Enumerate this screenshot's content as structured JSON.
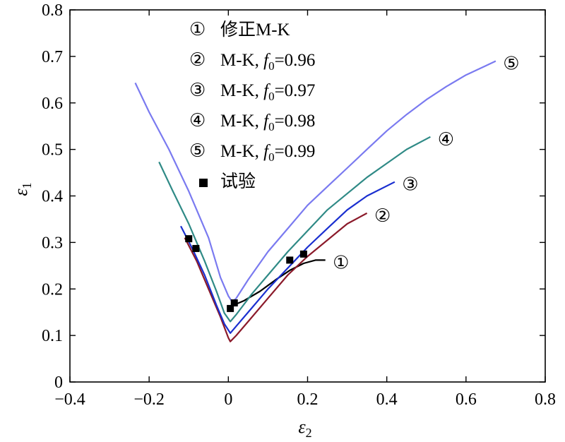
{
  "chart_data": {
    "type": "line",
    "xlabel": "ε₂",
    "ylabel": "ε₁",
    "xlim": [
      -0.4,
      0.8
    ],
    "ylim": [
      0,
      0.8
    ],
    "xticks": [
      -0.4,
      -0.2,
      0,
      0.2,
      0.4,
      0.6,
      0.8
    ],
    "yticks": [
      0,
      0.1,
      0.2,
      0.3,
      0.4,
      0.5,
      0.6,
      0.7,
      0.8
    ],
    "xtick_labels": [
      "−0.4",
      "−0.2",
      "0",
      "0.2",
      "0.4",
      "0.6",
      "0.8"
    ],
    "ytick_labels": [
      "0",
      "0.1",
      "0.2",
      "0.3",
      "0.4",
      "0.5",
      "0.6",
      "0.7",
      "0.8"
    ],
    "grid": false,
    "legend_position": "top-center",
    "legend": [
      {
        "marker": "①",
        "text": "修正M-K"
      },
      {
        "marker": "②",
        "text": "M-K, f0=0.96"
      },
      {
        "marker": "③",
        "text": "M-K, f0=0.97"
      },
      {
        "marker": "④",
        "text": "M-K, f0=0.98"
      },
      {
        "marker": "⑤",
        "text": "M-K, f0=0.99"
      },
      {
        "marker": "■",
        "text": "试验"
      }
    ],
    "series": [
      {
        "name": "①",
        "label": "①",
        "color": "#000000",
        "points": [
          [
            0.013,
            0.165
          ],
          [
            0.04,
            0.175
          ],
          [
            0.08,
            0.195
          ],
          [
            0.12,
            0.22
          ],
          [
            0.155,
            0.24
          ],
          [
            0.19,
            0.255
          ],
          [
            0.22,
            0.262
          ],
          [
            0.245,
            0.262
          ]
        ]
      },
      {
        "name": "②",
        "label": "②",
        "color": "#8b1a2a",
        "points": [
          [
            -0.11,
            0.31
          ],
          [
            -0.08,
            0.26
          ],
          [
            -0.05,
            0.2
          ],
          [
            -0.02,
            0.14
          ],
          [
            0.0,
            0.095
          ],
          [
            0.005,
            0.087
          ],
          [
            0.02,
            0.1
          ],
          [
            0.05,
            0.13
          ],
          [
            0.1,
            0.18
          ],
          [
            0.15,
            0.23
          ],
          [
            0.2,
            0.27
          ],
          [
            0.25,
            0.305
          ],
          [
            0.3,
            0.34
          ],
          [
            0.35,
            0.363
          ]
        ]
      },
      {
        "name": "③",
        "label": "③",
        "color": "#1a2fd0",
        "points": [
          [
            -0.12,
            0.335
          ],
          [
            -0.09,
            0.285
          ],
          [
            -0.06,
            0.23
          ],
          [
            -0.03,
            0.165
          ],
          [
            -0.01,
            0.125
          ],
          [
            0.005,
            0.105
          ],
          [
            0.02,
            0.12
          ],
          [
            0.06,
            0.16
          ],
          [
            0.1,
            0.2
          ],
          [
            0.15,
            0.245
          ],
          [
            0.2,
            0.29
          ],
          [
            0.25,
            0.33
          ],
          [
            0.3,
            0.37
          ],
          [
            0.35,
            0.4
          ],
          [
            0.42,
            0.43
          ]
        ]
      },
      {
        "name": "④",
        "label": "④",
        "color": "#2f8a86",
        "points": [
          [
            -0.175,
            0.473
          ],
          [
            -0.14,
            0.41
          ],
          [
            -0.1,
            0.34
          ],
          [
            -0.06,
            0.26
          ],
          [
            -0.03,
            0.195
          ],
          [
            -0.01,
            0.148
          ],
          [
            0.005,
            0.13
          ],
          [
            0.02,
            0.145
          ],
          [
            0.06,
            0.19
          ],
          [
            0.1,
            0.23
          ],
          [
            0.15,
            0.28
          ],
          [
            0.2,
            0.325
          ],
          [
            0.25,
            0.37
          ],
          [
            0.3,
            0.405
          ],
          [
            0.35,
            0.44
          ],
          [
            0.4,
            0.47
          ],
          [
            0.45,
            0.5
          ],
          [
            0.51,
            0.527
          ]
        ]
      },
      {
        "name": "⑤",
        "label": "⑤",
        "color": "#7a7af0",
        "points": [
          [
            -0.235,
            0.643
          ],
          [
            -0.2,
            0.58
          ],
          [
            -0.15,
            0.5
          ],
          [
            -0.1,
            0.41
          ],
          [
            -0.05,
            0.31
          ],
          [
            -0.02,
            0.225
          ],
          [
            0.0,
            0.185
          ],
          [
            0.01,
            0.172
          ],
          [
            0.02,
            0.18
          ],
          [
            0.05,
            0.22
          ],
          [
            0.1,
            0.28
          ],
          [
            0.15,
            0.33
          ],
          [
            0.2,
            0.38
          ],
          [
            0.25,
            0.42
          ],
          [
            0.3,
            0.46
          ],
          [
            0.35,
            0.5
          ],
          [
            0.4,
            0.54
          ],
          [
            0.45,
            0.575
          ],
          [
            0.5,
            0.607
          ],
          [
            0.55,
            0.635
          ],
          [
            0.6,
            0.66
          ],
          [
            0.65,
            0.68
          ],
          [
            0.675,
            0.69
          ]
        ]
      },
      {
        "name": "试验",
        "marker": "square",
        "color": "#000000",
        "points": [
          [
            -0.1,
            0.308
          ],
          [
            -0.082,
            0.287
          ],
          [
            0.005,
            0.158
          ],
          [
            0.015,
            0.17
          ],
          [
            0.155,
            0.262
          ],
          [
            0.19,
            0.275
          ]
        ]
      }
    ]
  }
}
